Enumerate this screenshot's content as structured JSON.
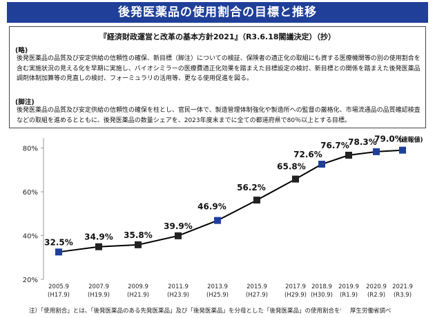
{
  "header": {
    "title": "後発医薬品の使用割合の目標と推移"
  },
  "excerpt": {
    "title": "『経済財政運営と改革の基本方針2021』（R3.6.18閣議決定）（抄）",
    "section_1_tag": "(略)",
    "section_1_text": "後発医薬品の品質及び安定供給の信頼性の確保、新目標（脚注）についての検証、保険者の適正化の取組にも資する医療機関等の別の使用割合を含む実施状況の見える化を早期に実施し、バイオシミラーの医療費適正化効果を踏まえた目標設定の検討、新目標との関係を踏まえた後発医薬品調剤体制加算等の見直しの検討、フォーミュラリの活用等、更なる使用促進を図る。",
    "section_2_tag": "(脚注)",
    "section_2_text": "後発医薬品の品質及び安定供給の信頼性の確保を柱とし、官民一体で、製造管理体制強化や製造所への監督の厳格化、市場流通品の品質確認検査などの取組を進めるとともに、後発医薬品の数量シェアを、2023年度末までに全ての都道府県で80％以上とする目標。"
  },
  "chart_data": {
    "type": "line",
    "categories": [
      "2005.9",
      "2007.9",
      "2009.9",
      "2011.9",
      "2013.9",
      "2015.9",
      "2017.9",
      "2018.9",
      "2019.9",
      "2020.9",
      "2021.9"
    ],
    "category_sublabels": [
      "(H17.9)",
      "(H19.9)",
      "(H21.9)",
      "(H23.9)",
      "(H25.9)",
      "(H27.9)",
      "(H29.9)",
      "(H30.9)",
      "(R1.9)",
      "(R2.9)",
      "(R3.9)"
    ],
    "series": [
      {
        "values": [
          32.5,
          34.9,
          35.8,
          39.9,
          46.9,
          56.2,
          65.8,
          72.6,
          76.7,
          78.3,
          79.0
        ]
      }
    ],
    "data_labels": [
      "32.5%",
      "34.9%",
      "35.8%",
      "39.9%",
      "46.9%",
      "56.2%",
      "65.8%",
      "72.6%",
      "76.7%",
      "78.3%",
      "79.0%"
    ],
    "last_label_note": "(速報値)",
    "y_ticks": [
      20,
      40,
      60,
      80
    ],
    "y_tick_labels": [
      "20%",
      "40%",
      "60%",
      "80%"
    ],
    "ylim": [
      20,
      83
    ],
    "grid": false,
    "line_color": "#000000",
    "marker_colors": [
      "#1f3f99",
      "#222222",
      "#222222",
      "#222222",
      "#1f3f99",
      "#222222",
      "#222222",
      "#1f3f99",
      "#222222",
      "#1f3f99",
      "#1f3f99"
    ]
  },
  "footer": {
    "note": "注）「使用割合」とは、「後発医薬品のある先発医薬品」及び「後発医薬品」を分母とした「後発医薬品」の使用割合をいう。",
    "source": "厚生労働省調べ"
  }
}
